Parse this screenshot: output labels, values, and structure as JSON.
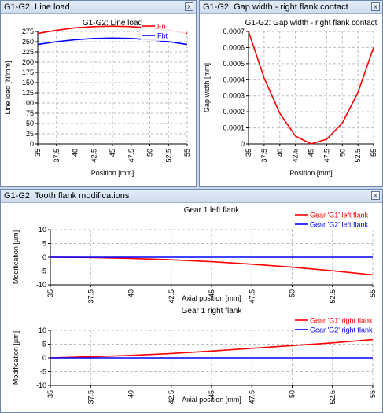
{
  "windows": {
    "line_load": {
      "title": "G1-G2: Line load",
      "close_glyph": "x"
    },
    "gap_width": {
      "title": "G1-G2: Gap width - right flank contact",
      "close_glyph": "x"
    },
    "flank_mods": {
      "title": "G1-G2: Tooth flank modifications",
      "close_glyph": "x"
    }
  },
  "colors": {
    "red": "#ff0000",
    "blue": "#0000ff",
    "grid": "#bbbbbb"
  },
  "chart_data": [
    {
      "type": "line",
      "title": "G1-G2: Line load",
      "xlabel": "Position [mm]",
      "ylabel": "Line load [N/mm]",
      "xlim": [
        35,
        55
      ],
      "ylim": [
        0,
        275
      ],
      "xticks": [
        "35",
        "37.5",
        "40",
        "42.5",
        "45",
        "47.5",
        "50",
        "52.5",
        "55"
      ],
      "yticks": [
        "0",
        "25",
        "50",
        "75",
        "100",
        "125",
        "150",
        "175",
        "200",
        "225",
        "250",
        "275"
      ],
      "legend_position": "top-right",
      "series": [
        {
          "name": "Fn",
          "color": "#ff0000",
          "x": [
            35,
            37.5,
            40,
            42.5,
            45,
            47.5,
            50,
            52.5,
            55
          ],
          "y": [
            270,
            278,
            284,
            287,
            288,
            287,
            284,
            278,
            270
          ]
        },
        {
          "name": "Fbt",
          "color": "#0000ff",
          "x": [
            35,
            37.5,
            40,
            42.5,
            45,
            47.5,
            50,
            52.5,
            55
          ],
          "y": [
            243,
            250,
            255,
            258,
            259,
            258,
            255,
            250,
            243
          ]
        }
      ]
    },
    {
      "type": "line",
      "title": "G1-G2: Gap width - right flank contact",
      "xlabel": "Position [mm]",
      "ylabel": "Gap width [mm]",
      "xlim": [
        35,
        55
      ],
      "ylim": [
        0,
        0.0007
      ],
      "xticks": [
        "35",
        "37.5",
        "40",
        "42.5",
        "45",
        "47.5",
        "50",
        "52.5",
        "55"
      ],
      "yticks": [
        "0",
        "0.0001",
        "0.0002",
        "0.0003",
        "0.0004",
        "0.0005",
        "0.0006",
        "0.0007"
      ],
      "series": [
        {
          "color": "#ff0000",
          "x": [
            35,
            37.5,
            40,
            42.5,
            45,
            47.5,
            50,
            52.5,
            55
          ],
          "y": [
            0.0007,
            0.00041,
            0.00019,
            5e-05,
            0.0,
            3e-05,
            0.00013,
            0.00032,
            0.0006
          ]
        }
      ]
    },
    {
      "type": "line",
      "title": "Gear 1 left flank",
      "xlabel": "Axial position [mm]",
      "ylabel": "Modification [µm]",
      "xlim": [
        35,
        55
      ],
      "ylim": [
        -10,
        10
      ],
      "xticks": [
        "35",
        "37.5",
        "40",
        "42.5",
        "45",
        "47.5",
        "50",
        "52.5",
        "55"
      ],
      "yticks": [
        "-10",
        "-5",
        "0",
        "5",
        "10"
      ],
      "legend_position": "top-right",
      "series": [
        {
          "name": "Gear 'G1' left flank",
          "color": "#ff0000",
          "x": [
            35,
            37.5,
            40,
            42.5,
            45,
            47.5,
            50,
            52.5,
            55
          ],
          "y": [
            0,
            -0.1,
            -0.4,
            -0.9,
            -1.6,
            -2.5,
            -3.6,
            -4.9,
            -6.4
          ]
        },
        {
          "name": "Gear 'G2' left flank",
          "color": "#0000ff",
          "x": [
            35,
            55
          ],
          "y": [
            0,
            0
          ]
        }
      ]
    },
    {
      "type": "line",
      "title": "Gear 1 right flank",
      "xlabel": "Axial position [mm]",
      "ylabel": "Modification [µm]",
      "xlim": [
        35,
        55
      ],
      "ylim": [
        -10,
        10
      ],
      "xticks": [
        "35",
        "37.5",
        "40",
        "42.5",
        "45",
        "47.5",
        "50",
        "52.5",
        "55"
      ],
      "yticks": [
        "-10",
        "-5",
        "0",
        "5",
        "10"
      ],
      "legend_position": "top-right",
      "series": [
        {
          "name": "Gear 'G1' right flank",
          "color": "#ff0000",
          "x": [
            35,
            37.5,
            40,
            42.5,
            45,
            47.5,
            50,
            52.5,
            55
          ],
          "y": [
            0,
            0.4,
            0.9,
            1.6,
            2.5,
            3.5,
            4.5,
            5.5,
            6.7
          ]
        },
        {
          "name": "Gear 'G2' right flank",
          "color": "#0000ff",
          "x": [
            35,
            55
          ],
          "y": [
            0,
            0
          ]
        }
      ]
    }
  ]
}
